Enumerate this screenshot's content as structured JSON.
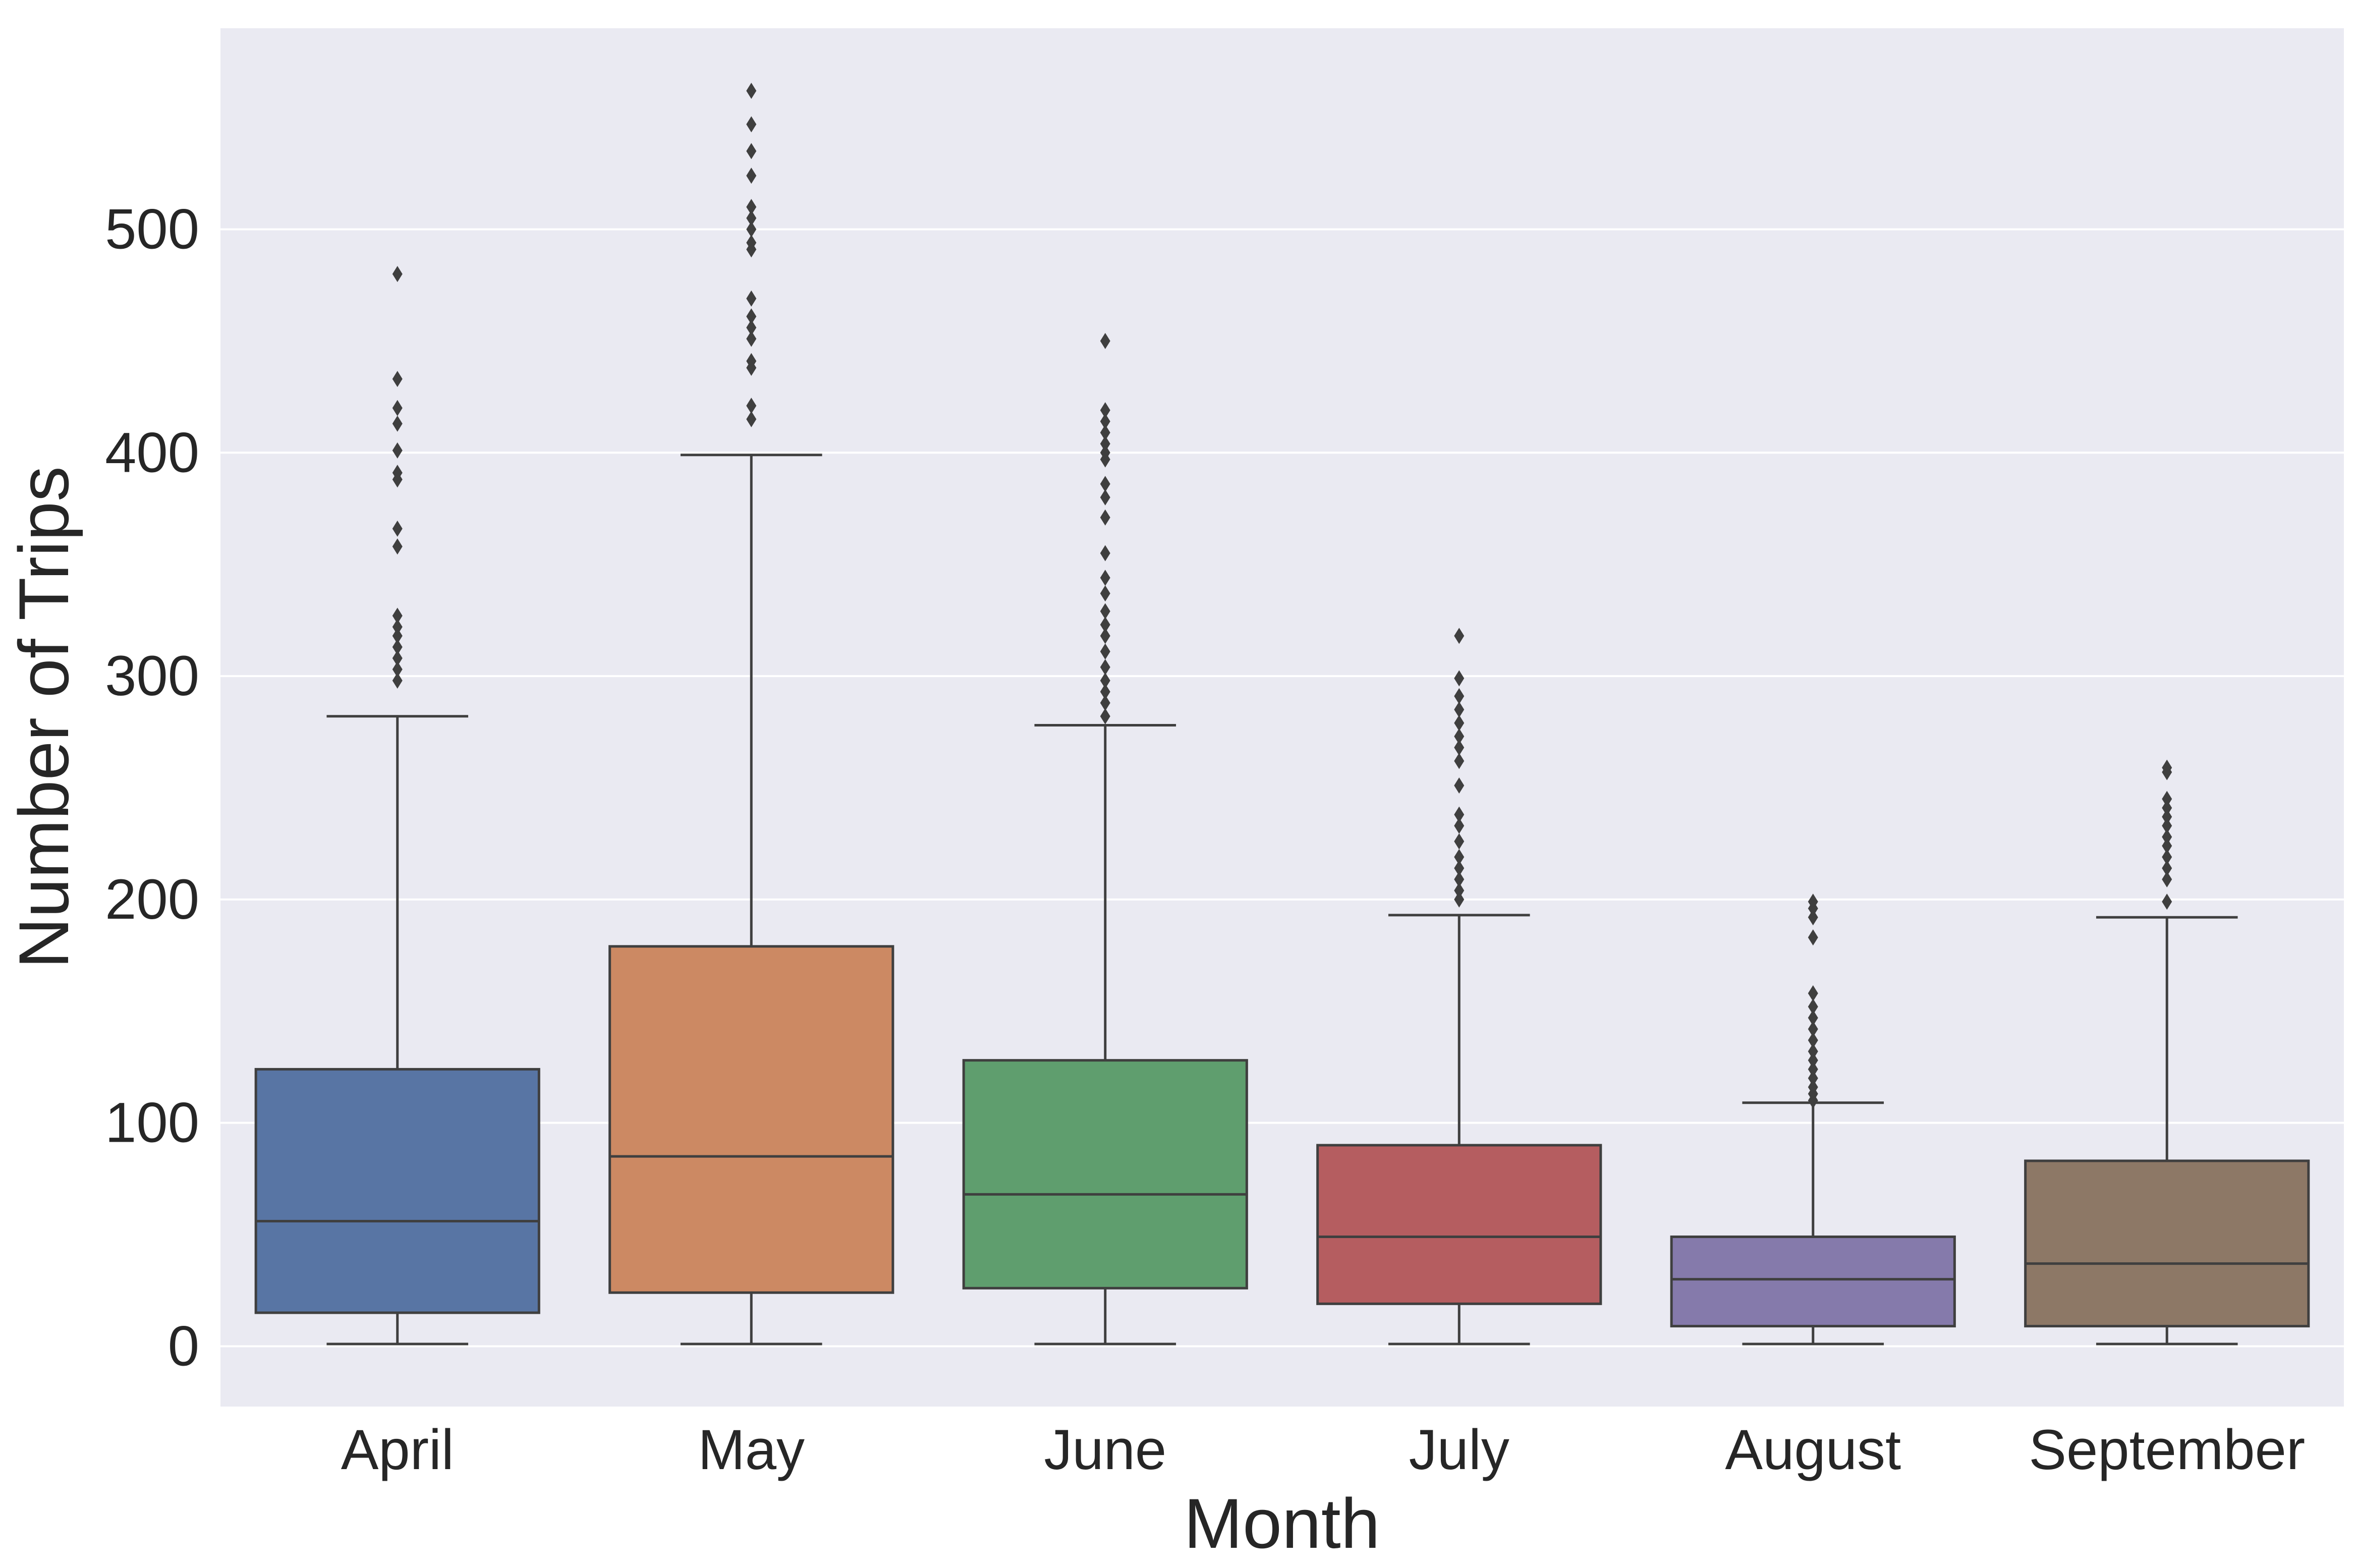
{
  "chart_data": {
    "type": "box",
    "title": "",
    "xlabel": "Month",
    "ylabel": "Number of Trips",
    "ylim": [
      -27,
      590
    ],
    "yticks": [
      0,
      100,
      200,
      300,
      400,
      500
    ],
    "grid": true,
    "legend": "none",
    "background": "#eaeaf2",
    "categories": [
      "April",
      "May",
      "June",
      "July",
      "August",
      "September"
    ],
    "boxes": [
      {
        "category": "April",
        "color": "#5875a4",
        "min": 1,
        "q1": 15,
        "median": 56,
        "q3": 124,
        "max": 282,
        "outliers": [
          298,
          303,
          308,
          313,
          318,
          322,
          327,
          358,
          366,
          388,
          391,
          401,
          413,
          420,
          433,
          480
        ]
      },
      {
        "category": "May",
        "color": "#cc8963",
        "min": 1,
        "q1": 24,
        "median": 85,
        "q3": 179,
        "max": 399,
        "outliers": [
          415,
          421,
          438,
          441,
          451,
          456,
          461,
          469,
          491,
          494,
          500,
          505,
          510,
          524,
          535,
          547,
          562
        ]
      },
      {
        "category": "June",
        "color": "#5f9e6e",
        "min": 1,
        "q1": 26,
        "median": 68,
        "q3": 128,
        "max": 278,
        "outliers": [
          282,
          288,
          293,
          298,
          304,
          311,
          318,
          323,
          329,
          337,
          344,
          355,
          371,
          380,
          386,
          397,
          400,
          404,
          409,
          414,
          419,
          450
        ]
      },
      {
        "category": "July",
        "color": "#b55d60",
        "min": 1,
        "q1": 19,
        "median": 49,
        "q3": 90,
        "max": 193,
        "outliers": [
          200,
          204,
          209,
          214,
          219,
          226,
          233,
          238,
          251,
          262,
          268,
          273,
          279,
          285,
          291,
          299,
          318
        ]
      },
      {
        "category": "August",
        "color": "#857aab",
        "min": 1,
        "q1": 9,
        "median": 30,
        "q3": 49,
        "max": 109,
        "outliers": [
          110,
          113,
          116,
          120,
          124,
          128,
          132,
          137,
          142,
          147,
          152,
          158,
          183,
          192,
          196,
          199
        ]
      },
      {
        "category": "September",
        "color": "#8d7866",
        "min": 1,
        "q1": 9,
        "median": 37,
        "q3": 83,
        "max": 192,
        "outliers": [
          199,
          209,
          214,
          219,
          224,
          228,
          233,
          237,
          241,
          245,
          257,
          259
        ]
      }
    ]
  }
}
